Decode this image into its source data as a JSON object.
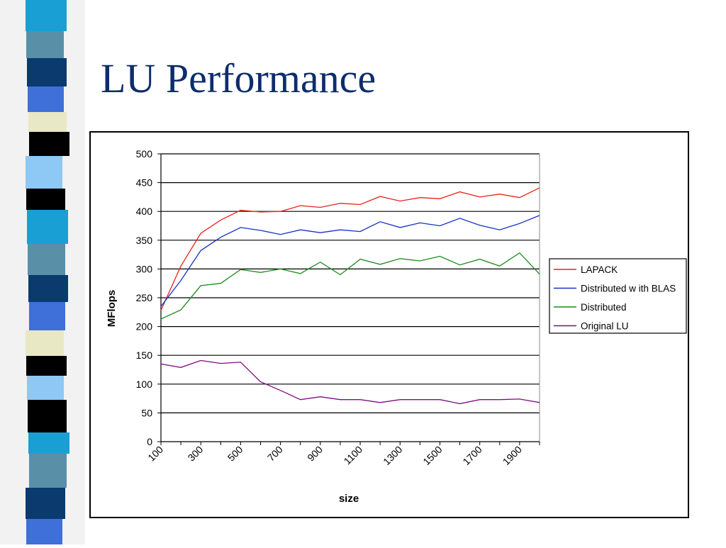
{
  "slide": {
    "title": "LU Performance"
  },
  "colors": {
    "title": "#0d2d6c",
    "strip": [
      "#1a9fd4",
      "#5a8fa8",
      "#0a3a6e",
      "#3f6fd8",
      "#e8e8c4",
      "#000000",
      "#8ec8f4",
      "#000000"
    ]
  },
  "chart_data": {
    "type": "line",
    "title": "",
    "xlabel": "size",
    "ylabel": "MFlops",
    "x": [
      100,
      200,
      300,
      400,
      500,
      600,
      700,
      800,
      900,
      1000,
      1100,
      1200,
      1300,
      1400,
      1500,
      1600,
      1700,
      1800,
      1900,
      2000
    ],
    "x_tick_labels": [
      "100",
      "300",
      "500",
      "700",
      "900",
      "1100",
      "1300",
      "1500",
      "1700",
      "1900"
    ],
    "ylim": [
      0,
      500
    ],
    "y_ticks": [
      0,
      50,
      100,
      150,
      200,
      250,
      300,
      350,
      400,
      450,
      500
    ],
    "grid": true,
    "legend_position": "right",
    "series": [
      {
        "name": "LAPACK",
        "color": "#e8221c",
        "values": [
          228,
          305,
          362,
          385,
          402,
          399,
          400,
          410,
          407,
          414,
          412,
          426,
          418,
          424,
          422,
          434,
          425,
          430,
          424,
          441
        ]
      },
      {
        "name": "Distributed w ith BLAS",
        "color": "#1730c8",
        "values": [
          235,
          280,
          332,
          355,
          372,
          367,
          360,
          368,
          363,
          368,
          365,
          382,
          372,
          380,
          375,
          388,
          376,
          368,
          379,
          393
        ]
      },
      {
        "name": "Distributed",
        "color": "#1f8a1f",
        "values": [
          213,
          229,
          271,
          275,
          299,
          294,
          300,
          292,
          312,
          290,
          317,
          308,
          318,
          314,
          322,
          307,
          317,
          305,
          328,
          291
        ]
      },
      {
        "name": "Original LU",
        "color": "#800c80",
        "values": [
          135,
          129,
          141,
          136,
          138,
          104,
          89,
          73,
          78,
          73,
          73,
          68,
          73,
          73,
          73,
          66,
          73,
          73,
          74,
          68
        ]
      }
    ]
  }
}
